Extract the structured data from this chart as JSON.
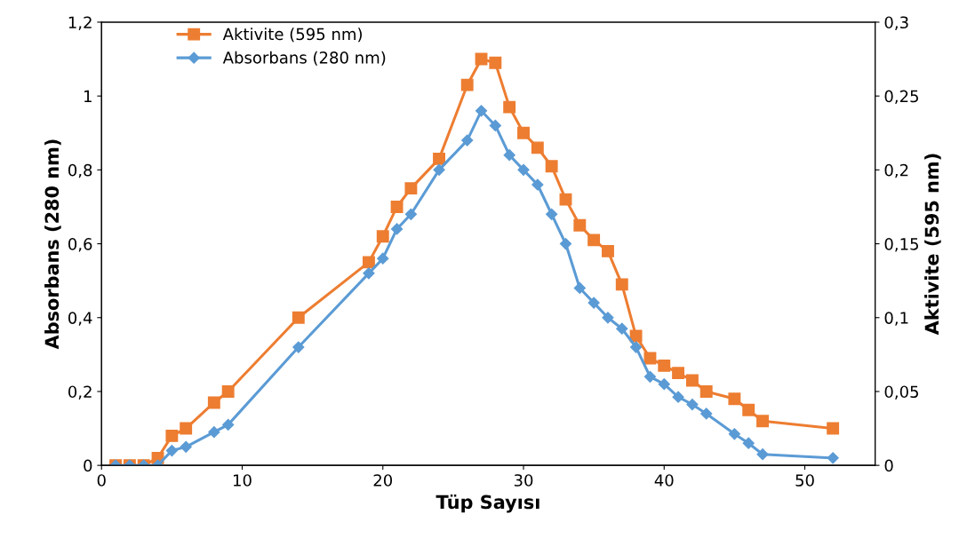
{
  "chart_data": {
    "type": "line",
    "xlabel": "Tüp Sayısı",
    "ylabel": "Absorbans (280 nm)",
    "y2label": "Aktivite (595 nm)",
    "xlim": [
      0,
      55
    ],
    "xticks": [
      0,
      10,
      20,
      30,
      40,
      50
    ],
    "ylim": [
      0,
      1.2
    ],
    "yticks": [
      {
        "value": 0,
        "label": "0"
      },
      {
        "value": 0.2,
        "label": "0,2"
      },
      {
        "value": 0.4,
        "label": "0,4"
      },
      {
        "value": 0.6,
        "label": "0,6"
      },
      {
        "value": 0.8,
        "label": "0,8"
      },
      {
        "value": 1,
        "label": "1"
      },
      {
        "value": 1.2,
        "label": "1,2"
      }
    ],
    "y2lim": [
      0,
      0.3
    ],
    "y2ticks": [
      {
        "value": 0,
        "label": "0"
      },
      {
        "value": 0.05,
        "label": "0,05"
      },
      {
        "value": 0.1,
        "label": "0,1"
      },
      {
        "value": 0.15,
        "label": "0,15"
      },
      {
        "value": 0.2,
        "label": "0,2"
      },
      {
        "value": 0.25,
        "label": "0,25"
      },
      {
        "value": 0.3,
        "label": "0,3"
      }
    ],
    "x": [
      1,
      2,
      3,
      4,
      5,
      6,
      8,
      9,
      14,
      19,
      20,
      21,
      22,
      24,
      26,
      27,
      28,
      29,
      30,
      31,
      32,
      33,
      34,
      35,
      36,
      37,
      38,
      39,
      40,
      41,
      42,
      43,
      45,
      46,
      47,
      52
    ],
    "grid": false,
    "legend": "top left",
    "line_style": "solid",
    "series": [
      {
        "name": "Aktivite (595 nm)",
        "color": "#ed7d31",
        "axis": "y2",
        "marker": "square",
        "values": [
          0,
          0,
          0,
          0.005,
          0.02,
          0.025,
          0.0425,
          0.05,
          0.1,
          0.1375,
          0.155,
          0.175,
          0.1875,
          0.2075,
          0.2575,
          0.275,
          0.2725,
          0.2425,
          0.225,
          0.215,
          0.2025,
          0.18,
          0.1625,
          0.1525,
          0.145,
          0.1225,
          0.0875,
          0.0725,
          0.0675,
          0.0625,
          0.0575,
          0.05,
          0.045,
          0.0375,
          0.03,
          0.025
        ]
      },
      {
        "name": "Absorbans (280 nm)",
        "color": "#5b9bd5",
        "marker": "diamond",
        "values": [
          0,
          0,
          0,
          0,
          0.04,
          0.05,
          0.09,
          0.11,
          0.32,
          0.52,
          0.56,
          0.64,
          0.68,
          0.8,
          0.88,
          0.96,
          0.92,
          0.84,
          0.8,
          0.76,
          0.68,
          0.6,
          0.48,
          0.44,
          0.4,
          0.37,
          0.32,
          0.24,
          0.22,
          0.185,
          0.165,
          0.14,
          0.085,
          0.06,
          0.03,
          0.02
        ]
      }
    ]
  }
}
